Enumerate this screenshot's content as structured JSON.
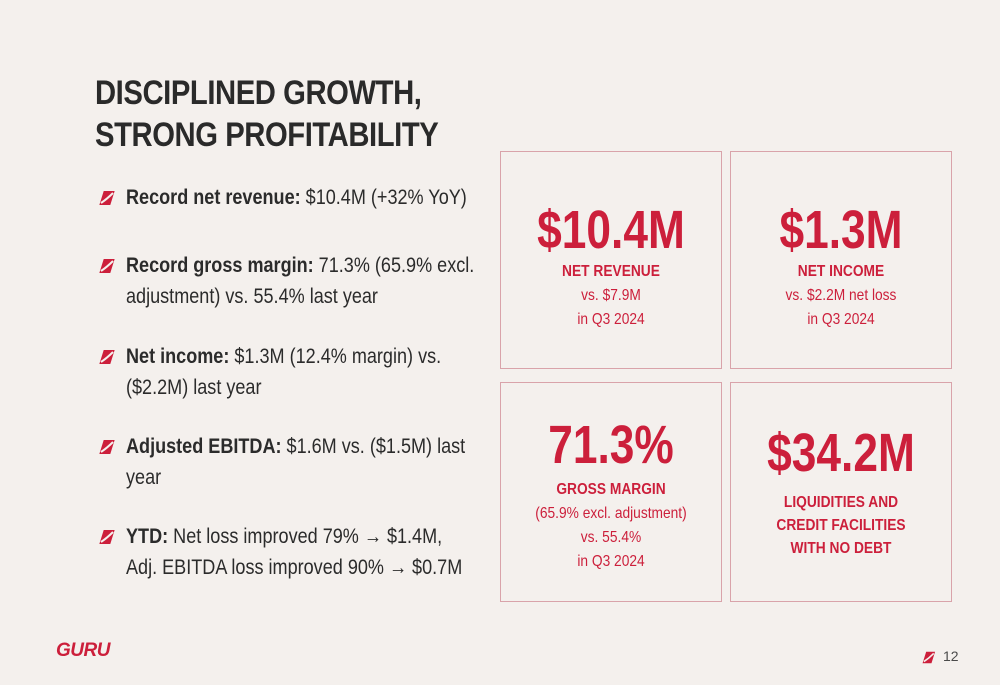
{
  "title": {
    "line1": "DISCIPLINED GROWTH,",
    "line2": "STRONG PROFITABILITY"
  },
  "bullets": [
    {
      "label": "Record net revenue:",
      "text": " $10.4M (+32% YoY)",
      "cont": ""
    },
    {
      "label": "Record gross margin:",
      "text": " 71.3% (65.9% excl.",
      "cont": "adjustment) vs. 55.4% last year"
    },
    {
      "label": "Net income:",
      "text": " $1.3M (12.4% margin) vs.",
      "cont": "($2.2M) last year"
    },
    {
      "label": "Adjusted EBITDA:",
      "text": " $1.6M vs. ($1.5M) last",
      "cont": "year"
    },
    {
      "label": "YTD:",
      "text": " Net loss improved 79% → $1.4M,",
      "cont": "Adj. EBITDA loss improved 90% → $0.7M"
    }
  ],
  "cards": {
    "net_revenue": {
      "value": "$10.4M",
      "label": "NET REVENUE",
      "sub1": "vs. $7.9M",
      "sub2": "in Q3 2024"
    },
    "net_income": {
      "value": "$1.3M",
      "label": "NET INCOME",
      "sub1": "vs. $2.2M net loss",
      "sub2": "in Q3 2024"
    },
    "gross_margin": {
      "value": "71.3%",
      "label": "GROSS MARGIN",
      "sub1": "(65.9% excl. adjustment)",
      "sub2": "vs. 55.4%",
      "sub3": "in Q3 2024"
    },
    "liquidity": {
      "value": "$34.2M",
      "label1": "LIQUIDITIES AND",
      "label2": "CREDIT FACILITIES",
      "label3": "WITH NO DEBT"
    }
  },
  "footer": {
    "logo": "GURU",
    "page": "12"
  },
  "colors": {
    "accent": "#cc1f3b",
    "background": "#f4f0ed",
    "card_border": "#d9a3aa",
    "text": "#2b2b2b"
  },
  "icons": {
    "bullet": "guru-leaf-icon"
  }
}
